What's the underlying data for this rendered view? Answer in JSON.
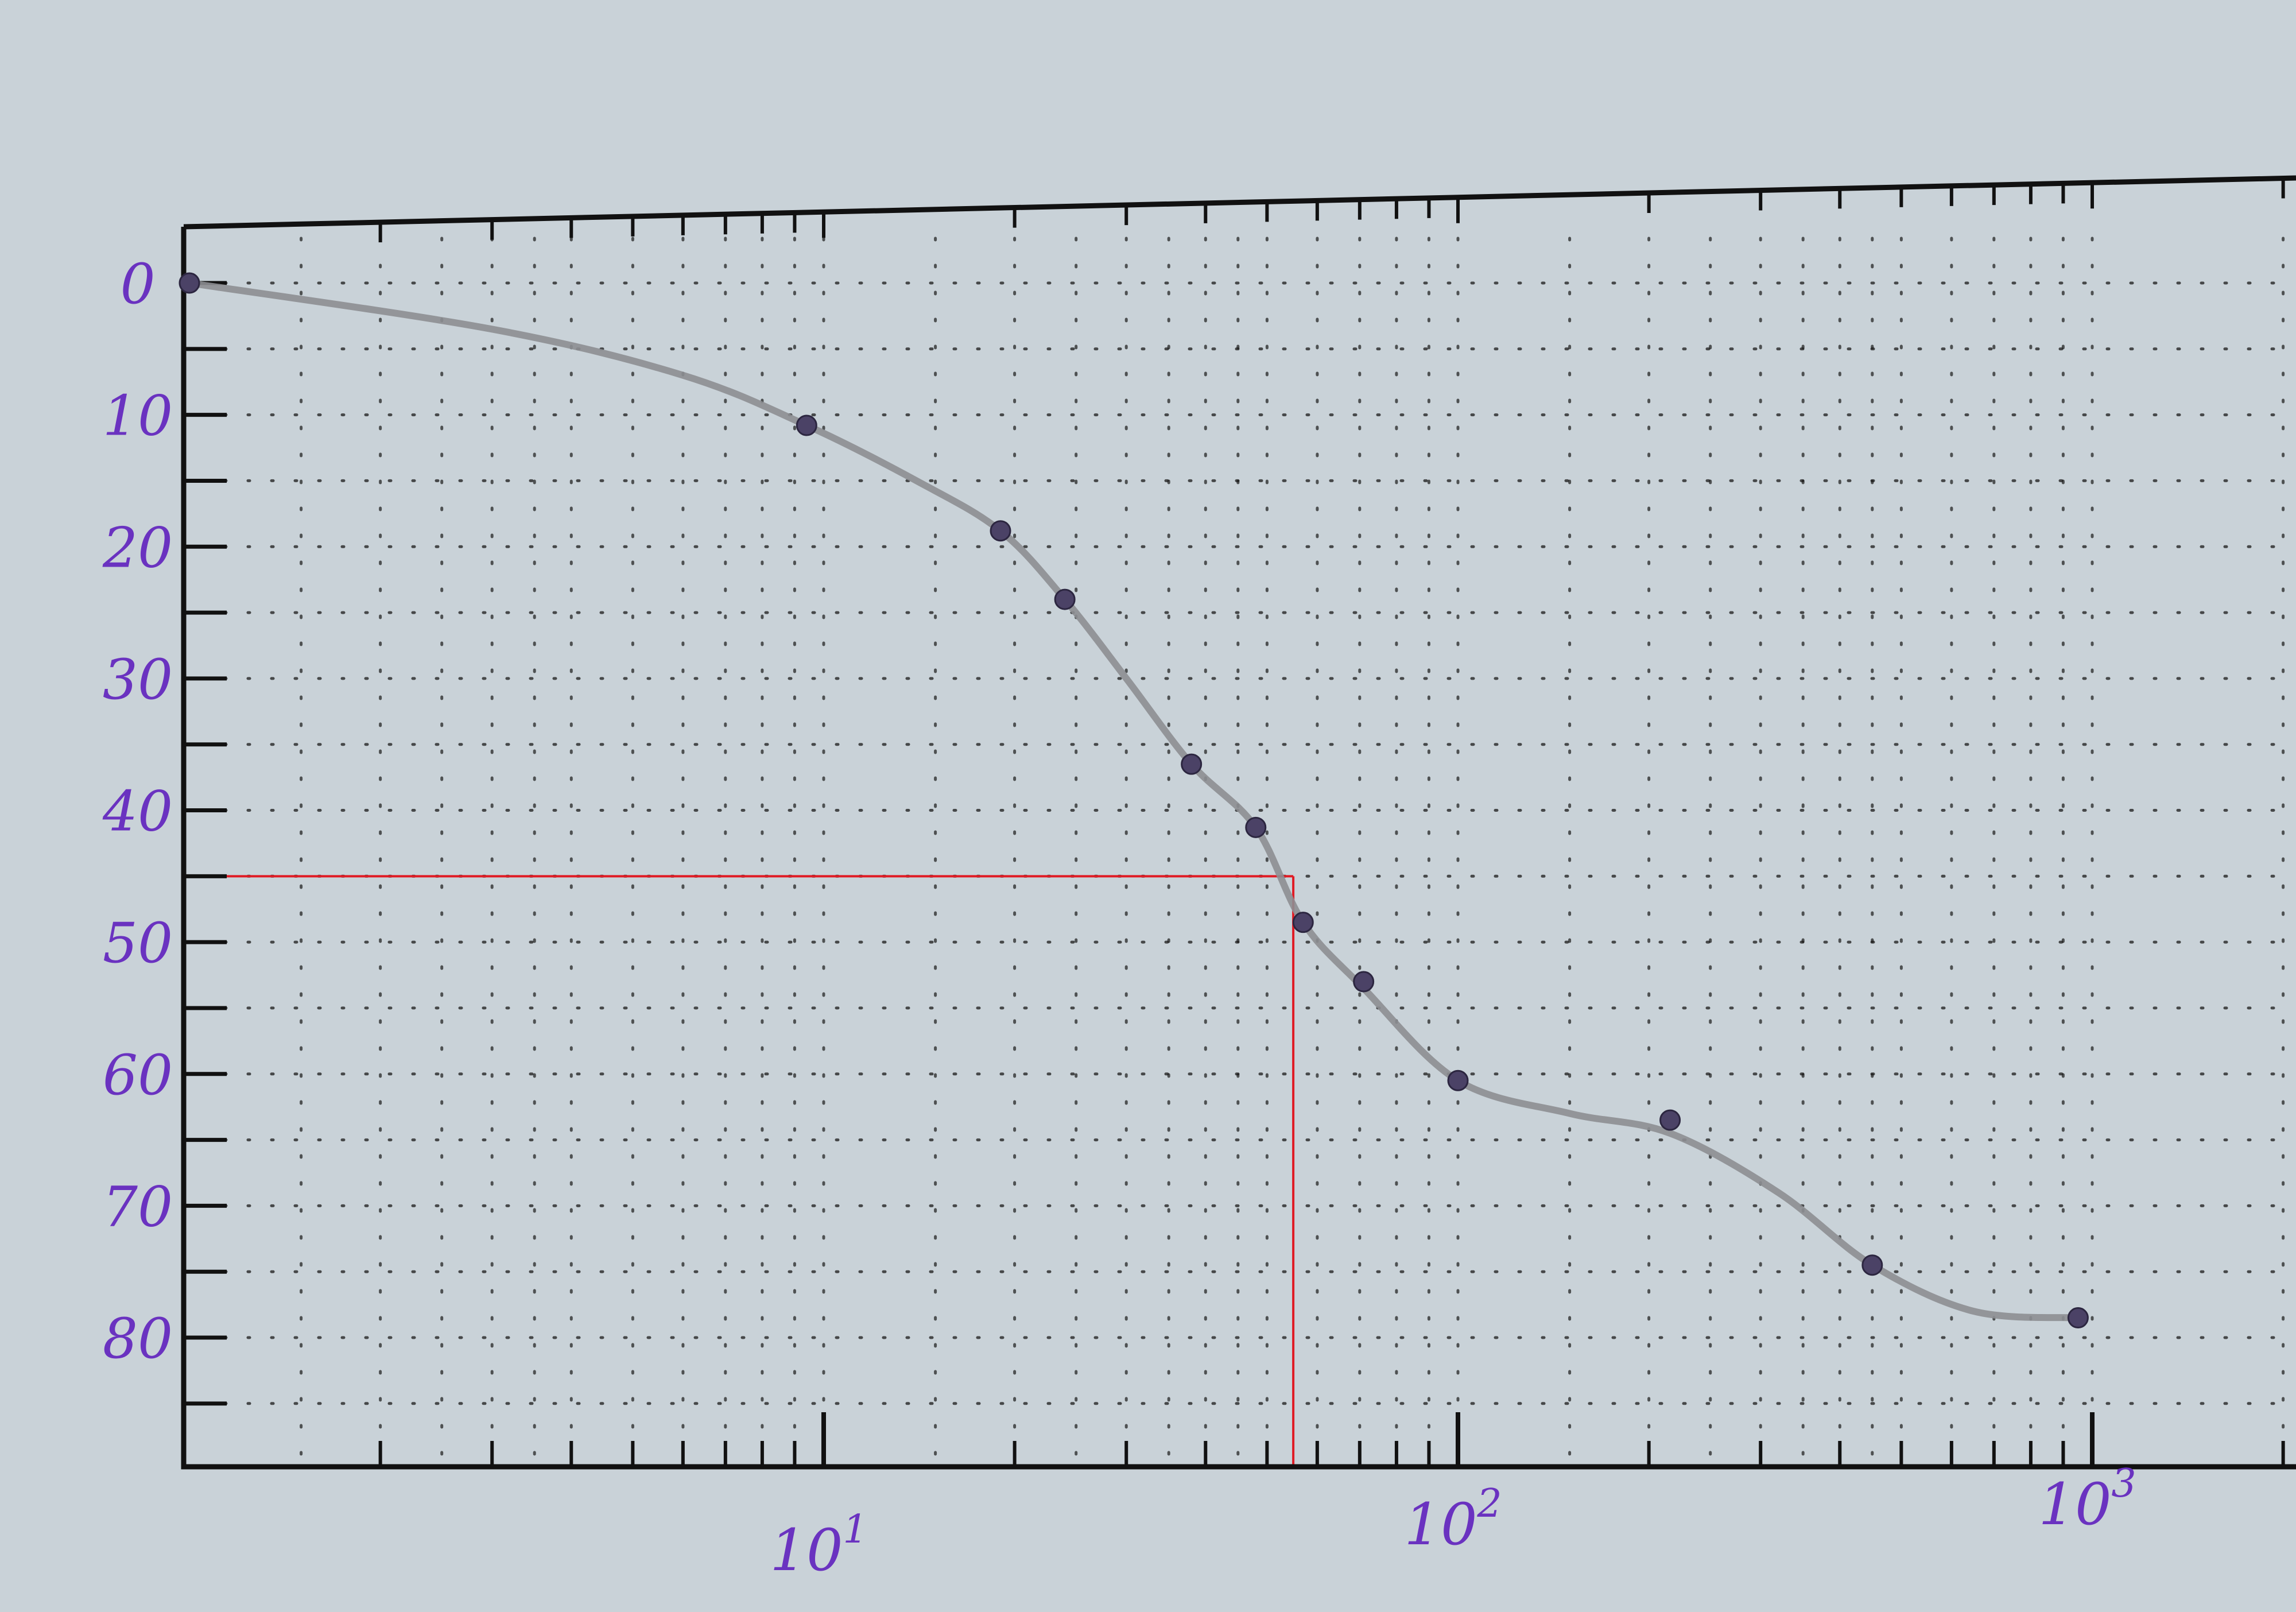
{
  "chart_data": {
    "type": "scatter",
    "title": "",
    "xlabel": "",
    "ylabel": "",
    "x_scale": "log",
    "x_range": [
      1,
      2000
    ],
    "y_range": [
      0,
      90
    ],
    "y_inverted": true,
    "grid": "dotted",
    "y_ticks": [
      0,
      10,
      20,
      30,
      40,
      50,
      60,
      70,
      80
    ],
    "y_tick_labels": [
      "0",
      "10",
      "20",
      "30",
      "40",
      "50",
      "60",
      "70",
      "80"
    ],
    "x_ticks": [
      10,
      100,
      1000
    ],
    "x_tick_labels": [
      "10",
      "10",
      "10"
    ],
    "x_tick_exponents": [
      "1",
      "2",
      "3"
    ],
    "series": [
      {
        "points": [
          {
            "x": 1,
            "y": 0
          },
          {
            "x": 9.4,
            "y": 10.8
          },
          {
            "x": 19,
            "y": 18.8
          },
          {
            "x": 24,
            "y": 24
          },
          {
            "x": 38,
            "y": 36.5
          },
          {
            "x": 48,
            "y": 41.3
          },
          {
            "x": 57,
            "y": 48.5
          },
          {
            "x": 71,
            "y": 53
          },
          {
            "x": 100,
            "y": 60.5
          },
          {
            "x": 216,
            "y": 63.5
          },
          {
            "x": 450,
            "y": 74.5
          },
          {
            "x": 950,
            "y": 78.5
          }
        ]
      }
    ],
    "curve": {
      "points": [
        {
          "x": 1,
          "y": 0
        },
        {
          "x": 3,
          "y": 3.5
        },
        {
          "x": 6,
          "y": 7
        },
        {
          "x": 9.4,
          "y": 10.8
        },
        {
          "x": 14,
          "y": 15
        },
        {
          "x": 19,
          "y": 18.8
        },
        {
          "x": 24,
          "y": 24
        },
        {
          "x": 30,
          "y": 30
        },
        {
          "x": 38,
          "y": 36.5
        },
        {
          "x": 48,
          "y": 41.3
        },
        {
          "x": 57,
          "y": 48.5
        },
        {
          "x": 71,
          "y": 53.5
        },
        {
          "x": 100,
          "y": 60.5
        },
        {
          "x": 150,
          "y": 63
        },
        {
          "x": 216,
          "y": 64.5
        },
        {
          "x": 320,
          "y": 69
        },
        {
          "x": 450,
          "y": 74.5
        },
        {
          "x": 650,
          "y": 78
        },
        {
          "x": 950,
          "y": 78.5
        }
      ]
    },
    "reference_lines": {
      "color": "#e01b24",
      "y_level": 45,
      "x_at": 55
    },
    "colors": {
      "axis": "#111111",
      "curve": "#8d8e92",
      "marker": "#4b4266",
      "label": "#6a32c0",
      "grid": "#1a1a1a",
      "paper": "#c9d2d8"
    }
  }
}
